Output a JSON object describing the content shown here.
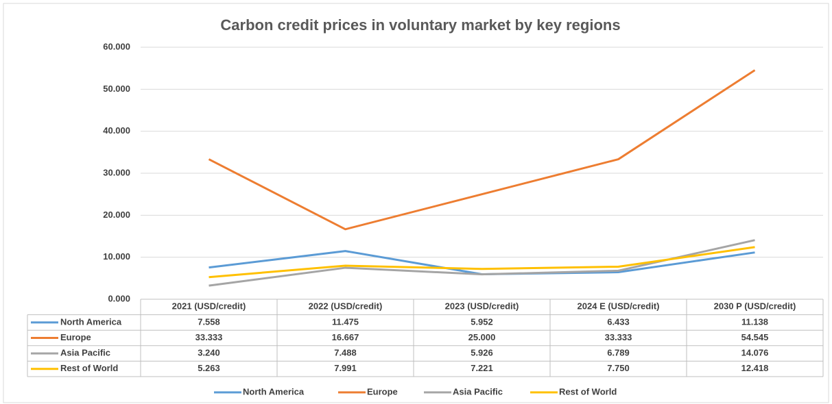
{
  "chart_data": {
    "type": "line",
    "title": "Carbon credit prices in voluntary market by key regions",
    "categories": [
      "2021 (USD/credit)",
      "2022 (USD/credit)",
      "2023 (USD/credit)",
      "2024 E (USD/credit)",
      "2030 P (USD/credit)"
    ],
    "series": [
      {
        "name": "North America",
        "color": "#5b9bd5",
        "values": [
          7.558,
          11.475,
          5.952,
          6.433,
          11.138
        ],
        "value_labels": [
          "7.558",
          "11.475",
          "5.952",
          "6.433",
          "11.138"
        ]
      },
      {
        "name": "Europe",
        "color": "#ed7d31",
        "values": [
          33.333,
          16.667,
          25.0,
          33.333,
          54.545
        ],
        "value_labels": [
          "33.333",
          "16.667",
          "25.000",
          "33.333",
          "54.545"
        ]
      },
      {
        "name": "Asia Pacific",
        "color": "#a5a5a5",
        "values": [
          3.24,
          7.488,
          5.926,
          6.789,
          14.076
        ],
        "value_labels": [
          "3.240",
          "7.488",
          "5.926",
          "6.789",
          "14.076"
        ]
      },
      {
        "name": "Rest of World",
        "color": "#ffc000",
        "values": [
          5.263,
          7.991,
          7.221,
          7.75,
          12.418
        ],
        "value_labels": [
          "5.263",
          "7.991",
          "7.221",
          "7.750",
          "12.418"
        ]
      }
    ],
    "ylim": [
      0,
      60
    ],
    "yticks": [
      {
        "value": 0,
        "label": "0.000"
      },
      {
        "value": 10,
        "label": "10.000"
      },
      {
        "value": 20,
        "label": "20.000"
      },
      {
        "value": 30,
        "label": "30.000"
      },
      {
        "value": 40,
        "label": "40.000"
      },
      {
        "value": 50,
        "label": "50.000"
      },
      {
        "value": 60,
        "label": "60.000"
      }
    ],
    "grid": true,
    "legend": "bottom"
  }
}
